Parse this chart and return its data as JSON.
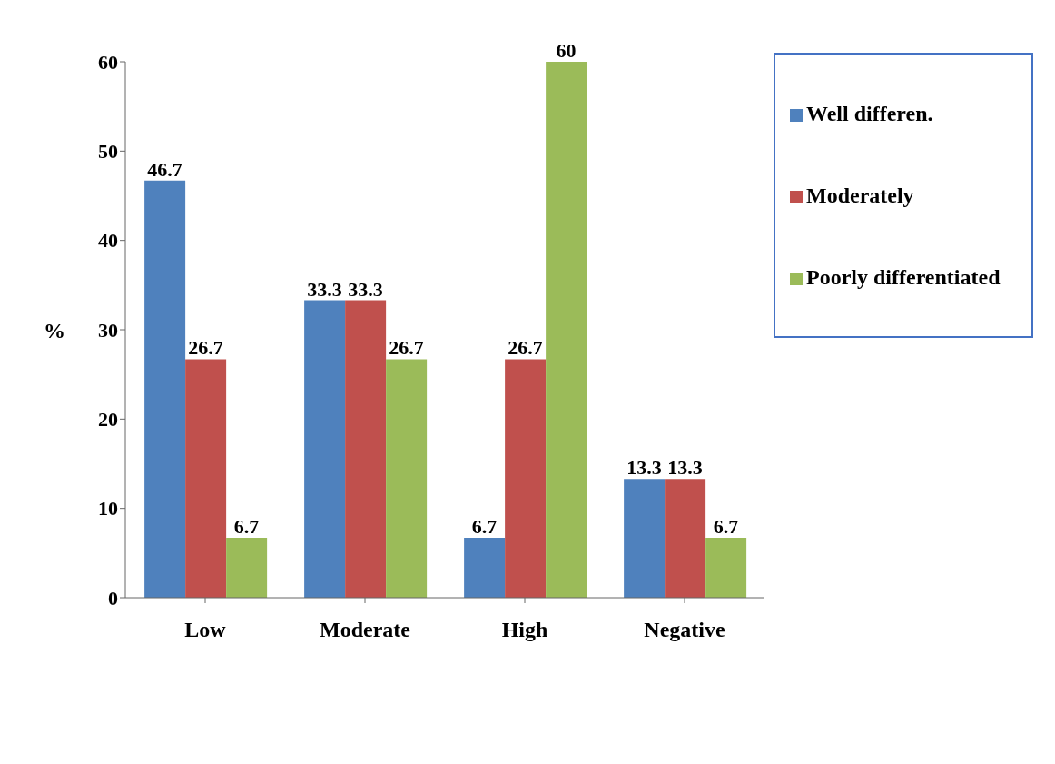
{
  "chart_data": {
    "type": "bar",
    "ylabel": "%",
    "categories": [
      "Low",
      "Moderate",
      "High",
      "Negative"
    ],
    "series": [
      {
        "name": "Well differen.",
        "color": "#4f81bd",
        "values": [
          46.7,
          33.3,
          6.7,
          13.3
        ]
      },
      {
        "name": "Moderately",
        "color": "#c0504d",
        "values": [
          26.7,
          33.3,
          26.7,
          13.3
        ]
      },
      {
        "name": "Poorly differentiated",
        "color": "#9bbb59",
        "values": [
          6.7,
          26.7,
          60,
          6.7
        ]
      }
    ],
    "ylim": [
      0,
      60
    ],
    "yticks": [
      0,
      10,
      20,
      30,
      40,
      50,
      60
    ],
    "grid": false,
    "legend": "top right",
    "data_labels": true
  }
}
